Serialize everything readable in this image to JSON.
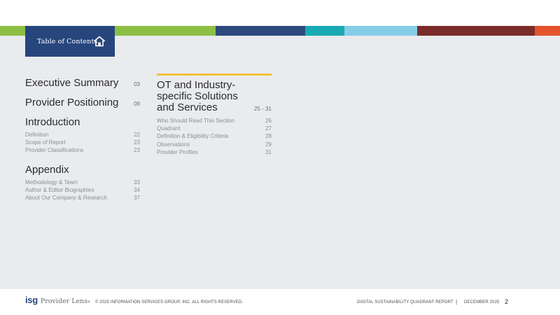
{
  "header": {
    "toc_label": "Table of Contents",
    "stripe_colors": [
      "#8dbf44",
      "#8dbf44",
      "#a7cb53",
      "#2e4a7d",
      "#1aaab3",
      "#86cde8",
      "#7a2c2b",
      "#e5532d"
    ]
  },
  "left": {
    "sections": [
      {
        "title": "Executive Summary",
        "page": "03",
        "subs": []
      },
      {
        "title": "Provider Positioning",
        "page": "09",
        "subs": []
      },
      {
        "title": "Introduction",
        "page": "",
        "subs": [
          {
            "label": "Definition",
            "page": "22"
          },
          {
            "label": "Scope of Report",
            "page": "23"
          },
          {
            "label": "Provider Classifications",
            "page": "23"
          }
        ]
      },
      {
        "title": "Appendix",
        "page": "",
        "subs": [
          {
            "label": "Methodology & Team",
            "page": "33"
          },
          {
            "label": "Author & Editor Biographies",
            "page": "34"
          },
          {
            "label": "About Our Company & Research",
            "page": "37"
          }
        ]
      }
    ]
  },
  "right": {
    "title": "OT and Industry-specific Solutions and Services",
    "page": "25 - 31",
    "subs": [
      {
        "label": "Who Should Read This Section",
        "page": "26"
      },
      {
        "label": "Quadrant",
        "page": "27"
      },
      {
        "label": "Definition & Eligibility Criteria",
        "page": "28"
      },
      {
        "label": "Observations",
        "page": "29"
      },
      {
        "label": "Provider Profiles",
        "page": "31"
      }
    ]
  },
  "footer": {
    "logo_isg": "isg",
    "logo_provider": "Provider Lens",
    "logo_tm": "®",
    "copyright": "© 2025 INFORMATION SERVICES GROUP, INC. ALL RIGHTS RESERVED.",
    "report_name": "DIGITAL SUSTAINABILITY QUADRANT REPORT",
    "separator": "|",
    "date": "DECEMBER 2025",
    "page_number": "2"
  }
}
